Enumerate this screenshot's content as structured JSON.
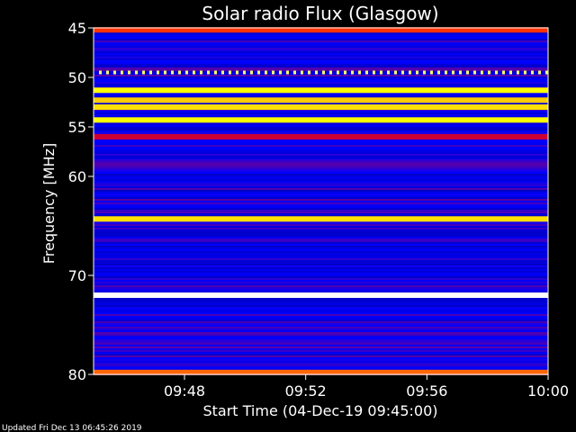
{
  "chart_data": {
    "type": "heatmap",
    "title": "Solar radio Flux (Glasgow)",
    "xlabel": "Start Time (04-Dec-19 09:45:00)",
    "ylabel": "Frequency [MHz]",
    "footer": "Updated Fri Dec 13 06:45:26 2019",
    "x_range": [
      "09:45",
      "10:00"
    ],
    "y_range": [
      45,
      80
    ],
    "y_ticks": [
      "45",
      "50",
      "55",
      "60",
      "70",
      "80"
    ],
    "x_ticks": [
      "09:48",
      "09:52",
      "09:56",
      "10:00"
    ],
    "colormap": [
      "#00007f",
      "#0000ff",
      "#ff0000",
      "#ffff00",
      "#ffffff"
    ],
    "bands": [
      {
        "mhz": 45.2,
        "level": 0.55
      },
      {
        "mhz": 49.5,
        "level": 0.85,
        "dotted": true
      },
      {
        "mhz": 51.3,
        "level": 0.75
      },
      {
        "mhz": 52.3,
        "level": 0.7
      },
      {
        "mhz": 53.0,
        "level": 0.72
      },
      {
        "mhz": 54.3,
        "level": 0.75
      },
      {
        "mhz": 56.0,
        "level": 0.45
      },
      {
        "mhz": 64.3,
        "level": 0.72
      },
      {
        "mhz": 72.0,
        "level": 1.0
      },
      {
        "mhz": 79.8,
        "level": 0.6
      }
    ]
  }
}
